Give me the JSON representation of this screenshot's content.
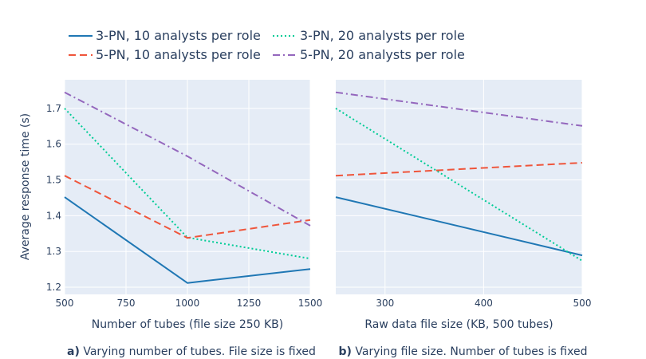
{
  "colors": {
    "plot_bg": "#e5ecf6",
    "grid": "#ffffff",
    "text": "#2a3f5f"
  },
  "legend": [
    {
      "label": "3-PN, 10 analysts per role",
      "color": "#1f77b4",
      "dash": "solid"
    },
    {
      "label": "3-PN, 20 analysts per role",
      "color": "#00cc96",
      "dash": "dot"
    },
    {
      "label": "5-PN, 10 analysts per role",
      "color": "#ef553b",
      "dash": "dash"
    },
    {
      "label": "5-PN, 20 analysts per role",
      "color": "#9467bd",
      "dash": "dashdot"
    }
  ],
  "y_axis_title": "Average response time (s)",
  "chart_data": [
    {
      "type": "line",
      "caption_prefix": "a)",
      "caption_text": " Varying number of tubes. File size is fixed",
      "xlabel": "Number of tubes (file size 250 KB)",
      "ylabel": "Average response time (s)",
      "xlim": [
        500,
        1500
      ],
      "ylim": [
        1.18,
        1.78
      ],
      "xticks": [
        500,
        750,
        1000,
        1250,
        1500
      ],
      "yticks": [
        1.2,
        1.3,
        1.4,
        1.5,
        1.6,
        1.7
      ],
      "show_y_tick_labels": true,
      "grid": true,
      "series": [
        {
          "name": "3-PN, 10 analysts per role",
          "x": [
            500,
            1000,
            1500
          ],
          "y": [
            1.452,
            1.212,
            1.251
          ]
        },
        {
          "name": "3-PN, 20 analysts per role",
          "x": [
            500,
            1000,
            1500
          ],
          "y": [
            1.7,
            1.339,
            1.28
          ]
        },
        {
          "name": "5-PN, 10 analysts per role",
          "x": [
            500,
            1000,
            1500
          ],
          "y": [
            1.512,
            1.338,
            1.388
          ]
        },
        {
          "name": "5-PN, 20 analysts per role",
          "x": [
            500,
            1000,
            1500
          ],
          "y": [
            1.745,
            1.566,
            1.372
          ]
        }
      ]
    },
    {
      "type": "line",
      "caption_prefix": "b)",
      "caption_text": " Varying file size. Number of tubes is fixed",
      "xlabel": "Raw data file size (KB, 500 tubes)",
      "ylabel": "",
      "xlim": [
        250,
        500
      ],
      "ylim": [
        1.18,
        1.78
      ],
      "xticks": [
        300,
        400,
        500
      ],
      "yticks": [
        1.2,
        1.3,
        1.4,
        1.5,
        1.6,
        1.7
      ],
      "show_y_tick_labels": false,
      "grid": true,
      "series": [
        {
          "name": "3-PN, 10 analysts per role",
          "x": [
            250,
            500
          ],
          "y": [
            1.452,
            1.289
          ]
        },
        {
          "name": "3-PN, 20 analysts per role",
          "x": [
            250,
            500
          ],
          "y": [
            1.7,
            1.274
          ]
        },
        {
          "name": "5-PN, 10 analysts per role",
          "x": [
            250,
            500
          ],
          "y": [
            1.512,
            1.548
          ]
        },
        {
          "name": "5-PN, 20 analysts per role",
          "x": [
            250,
            500
          ],
          "y": [
            1.745,
            1.651
          ]
        }
      ]
    }
  ]
}
